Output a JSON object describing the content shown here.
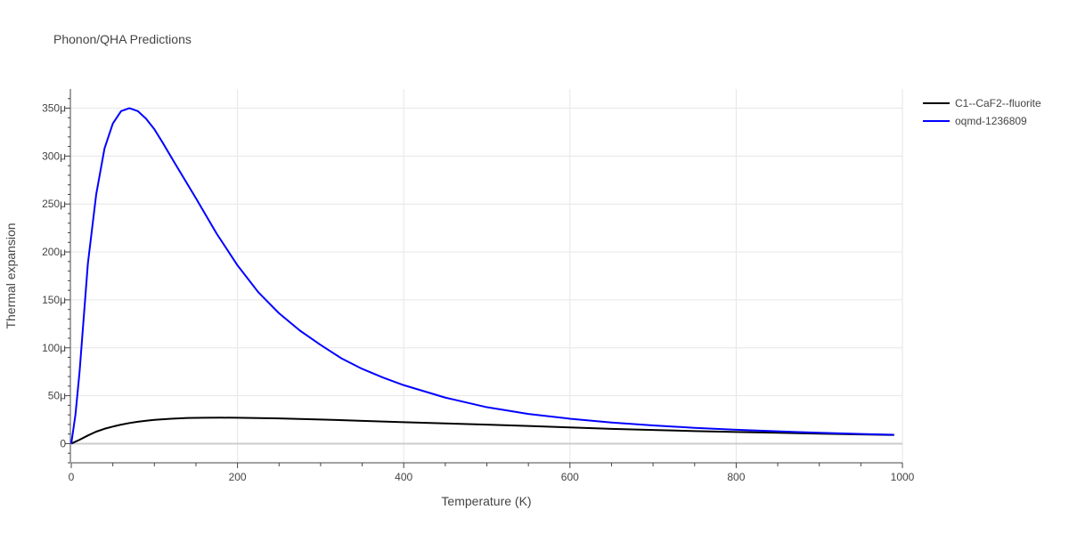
{
  "chart_data": {
    "type": "line",
    "title": "Phonon/QHA Predictions",
    "xlabel": "Temperature (K)",
    "ylabel": "Thermal expansion",
    "xlim": [
      0,
      1000
    ],
    "ylim": [
      -2e-05,
      0.00037
    ],
    "x_ticks": [
      "0",
      "200",
      "400",
      "600",
      "800",
      "1000"
    ],
    "y_ticks": [
      "0",
      "50μ",
      "100μ",
      "150μ",
      "200μ",
      "250μ",
      "300μ",
      "350μ"
    ],
    "grid": true,
    "legend_position": "top-right",
    "series": [
      {
        "name": "C1--CaF2--fluorite",
        "color": "#000000",
        "x": [
          0,
          10,
          20,
          30,
          40,
          50,
          60,
          70,
          80,
          90,
          100,
          120,
          140,
          160,
          180,
          200,
          250,
          300,
          350,
          400,
          450,
          500,
          550,
          600,
          650,
          700,
          750,
          800,
          850,
          900,
          950,
          990
        ],
        "y": [
          0,
          4e-06,
          8.5e-06,
          1.25e-05,
          1.55e-05,
          1.78e-05,
          1.98e-05,
          2.15e-05,
          2.28e-05,
          2.39e-05,
          2.48e-05,
          2.6e-05,
          2.68e-05,
          2.7e-05,
          2.71e-05,
          2.7e-05,
          2.63e-05,
          2.52e-05,
          2.38e-05,
          2.24e-05,
          2.11e-05,
          1.98e-05,
          1.84e-05,
          1.69e-05,
          1.54e-05,
          1.42e-05,
          1.31e-05,
          1.22e-05,
          1.13e-05,
          1.04e-05,
          9.6e-06,
          9e-06
        ]
      },
      {
        "name": "oqmd-1236809",
        "color": "#0000ff",
        "x": [
          0,
          5,
          10,
          20,
          30,
          40,
          50,
          60,
          70,
          80,
          90,
          100,
          110,
          125,
          150,
          175,
          200,
          225,
          250,
          275,
          300,
          325,
          350,
          375,
          400,
          450,
          500,
          550,
          600,
          650,
          700,
          750,
          800,
          850,
          900,
          950,
          990
        ],
        "y": [
          0,
          3e-05,
          7.5e-05,
          0.000188,
          0.00026,
          0.000308,
          0.000334,
          0.000347,
          0.00035,
          0.000347,
          0.000339,
          0.000328,
          0.000314,
          0.000292,
          0.000256,
          0.000219,
          0.000186,
          0.000158,
          0.000136,
          0.000118,
          0.000103,
          8.9e-05,
          7.8e-05,
          6.9e-05,
          6.1e-05,
          4.8e-05,
          3.8e-05,
          3.1e-05,
          2.6e-05,
          2.2e-05,
          1.9e-05,
          1.65e-05,
          1.45e-05,
          1.28e-05,
          1.13e-05,
          1.01e-05,
          9.2e-06
        ]
      }
    ]
  }
}
